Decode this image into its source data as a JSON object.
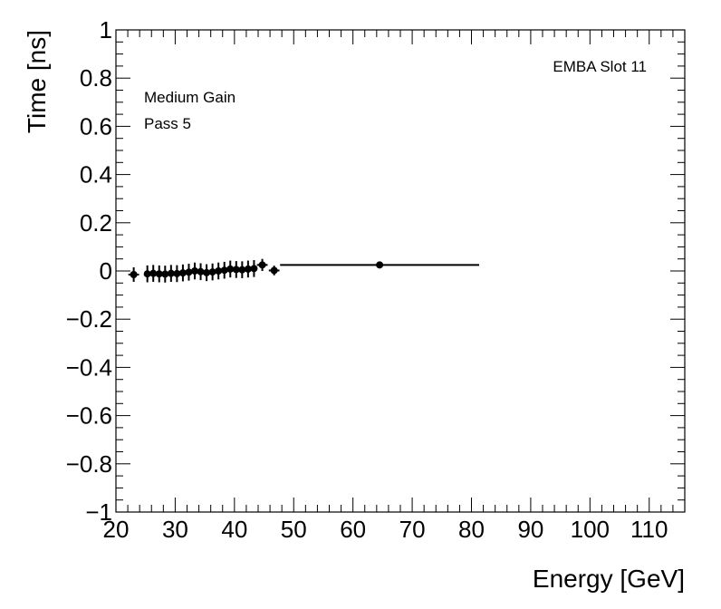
{
  "chart_data": {
    "type": "scatter",
    "title": "",
    "xlabel": "Energy [GeV]",
    "ylabel": "Time [ns]",
    "xlim": [
      20,
      116
    ],
    "ylim": [
      -1,
      1
    ],
    "x_ticks": [
      20,
      30,
      40,
      50,
      60,
      70,
      80,
      90,
      100,
      110
    ],
    "y_ticks": [
      -1,
      -0.8,
      -0.6,
      -0.4,
      -0.2,
      0,
      0.2,
      0.4,
      0.6,
      0.8,
      1
    ],
    "x_tick_labels": [
      "20",
      "30",
      "40",
      "50",
      "60",
      "70",
      "80",
      "90",
      "100",
      "110"
    ],
    "y_tick_labels": [
      "−1",
      "−0.8",
      "−0.6",
      "−0.4",
      "−0.2",
      "0",
      "0.2",
      "0.4",
      "0.6",
      "0.8",
      "1"
    ],
    "grid": false,
    "annotations": {
      "slot": "EMBA Slot 11",
      "gain": "Medium Gain",
      "pass": "Pass 5"
    },
    "series": [
      {
        "points": [
          {
            "x": 23.0,
            "y": -0.015,
            "xerr": 0.9,
            "yerr": 0.03
          },
          {
            "x": 25.3,
            "y": -0.012,
            "xerr": 0.5,
            "yerr": 0.035
          },
          {
            "x": 26.3,
            "y": -0.01,
            "xerr": 0.5,
            "yerr": 0.035
          },
          {
            "x": 27.3,
            "y": -0.012,
            "xerr": 0.5,
            "yerr": 0.035
          },
          {
            "x": 28.3,
            "y": -0.013,
            "xerr": 0.5,
            "yerr": 0.035
          },
          {
            "x": 29.3,
            "y": -0.01,
            "xerr": 0.5,
            "yerr": 0.035
          },
          {
            "x": 30.3,
            "y": -0.011,
            "xerr": 0.5,
            "yerr": 0.035
          },
          {
            "x": 31.3,
            "y": -0.008,
            "xerr": 0.5,
            "yerr": 0.035
          },
          {
            "x": 32.3,
            "y": -0.005,
            "xerr": 0.5,
            "yerr": 0.035
          },
          {
            "x": 33.3,
            "y": 0.0,
            "xerr": 0.5,
            "yerr": 0.035
          },
          {
            "x": 34.3,
            "y": -0.003,
            "xerr": 0.5,
            "yerr": 0.035
          },
          {
            "x": 35.3,
            "y": -0.007,
            "xerr": 0.5,
            "yerr": 0.035
          },
          {
            "x": 36.3,
            "y": -0.004,
            "xerr": 0.5,
            "yerr": 0.035
          },
          {
            "x": 37.3,
            "y": 0.0,
            "xerr": 0.5,
            "yerr": 0.035
          },
          {
            "x": 38.3,
            "y": 0.003,
            "xerr": 0.5,
            "yerr": 0.035
          },
          {
            "x": 39.3,
            "y": 0.008,
            "xerr": 0.5,
            "yerr": 0.035
          },
          {
            "x": 40.3,
            "y": 0.006,
            "xerr": 0.5,
            "yerr": 0.035
          },
          {
            "x": 41.3,
            "y": 0.005,
            "xerr": 0.5,
            "yerr": 0.035
          },
          {
            "x": 42.3,
            "y": 0.008,
            "xerr": 0.5,
            "yerr": 0.035
          },
          {
            "x": 43.3,
            "y": 0.01,
            "xerr": 0.5,
            "yerr": 0.035
          },
          {
            "x": 44.7,
            "y": 0.025,
            "xerr": 0.9,
            "yerr": 0.025
          },
          {
            "x": 46.7,
            "y": 0.002,
            "xerr": 0.9,
            "yerr": 0.02
          },
          {
            "x": 64.5,
            "y": 0.025,
            "xerr": 16.8,
            "yerr": 0.0
          }
        ]
      }
    ]
  }
}
